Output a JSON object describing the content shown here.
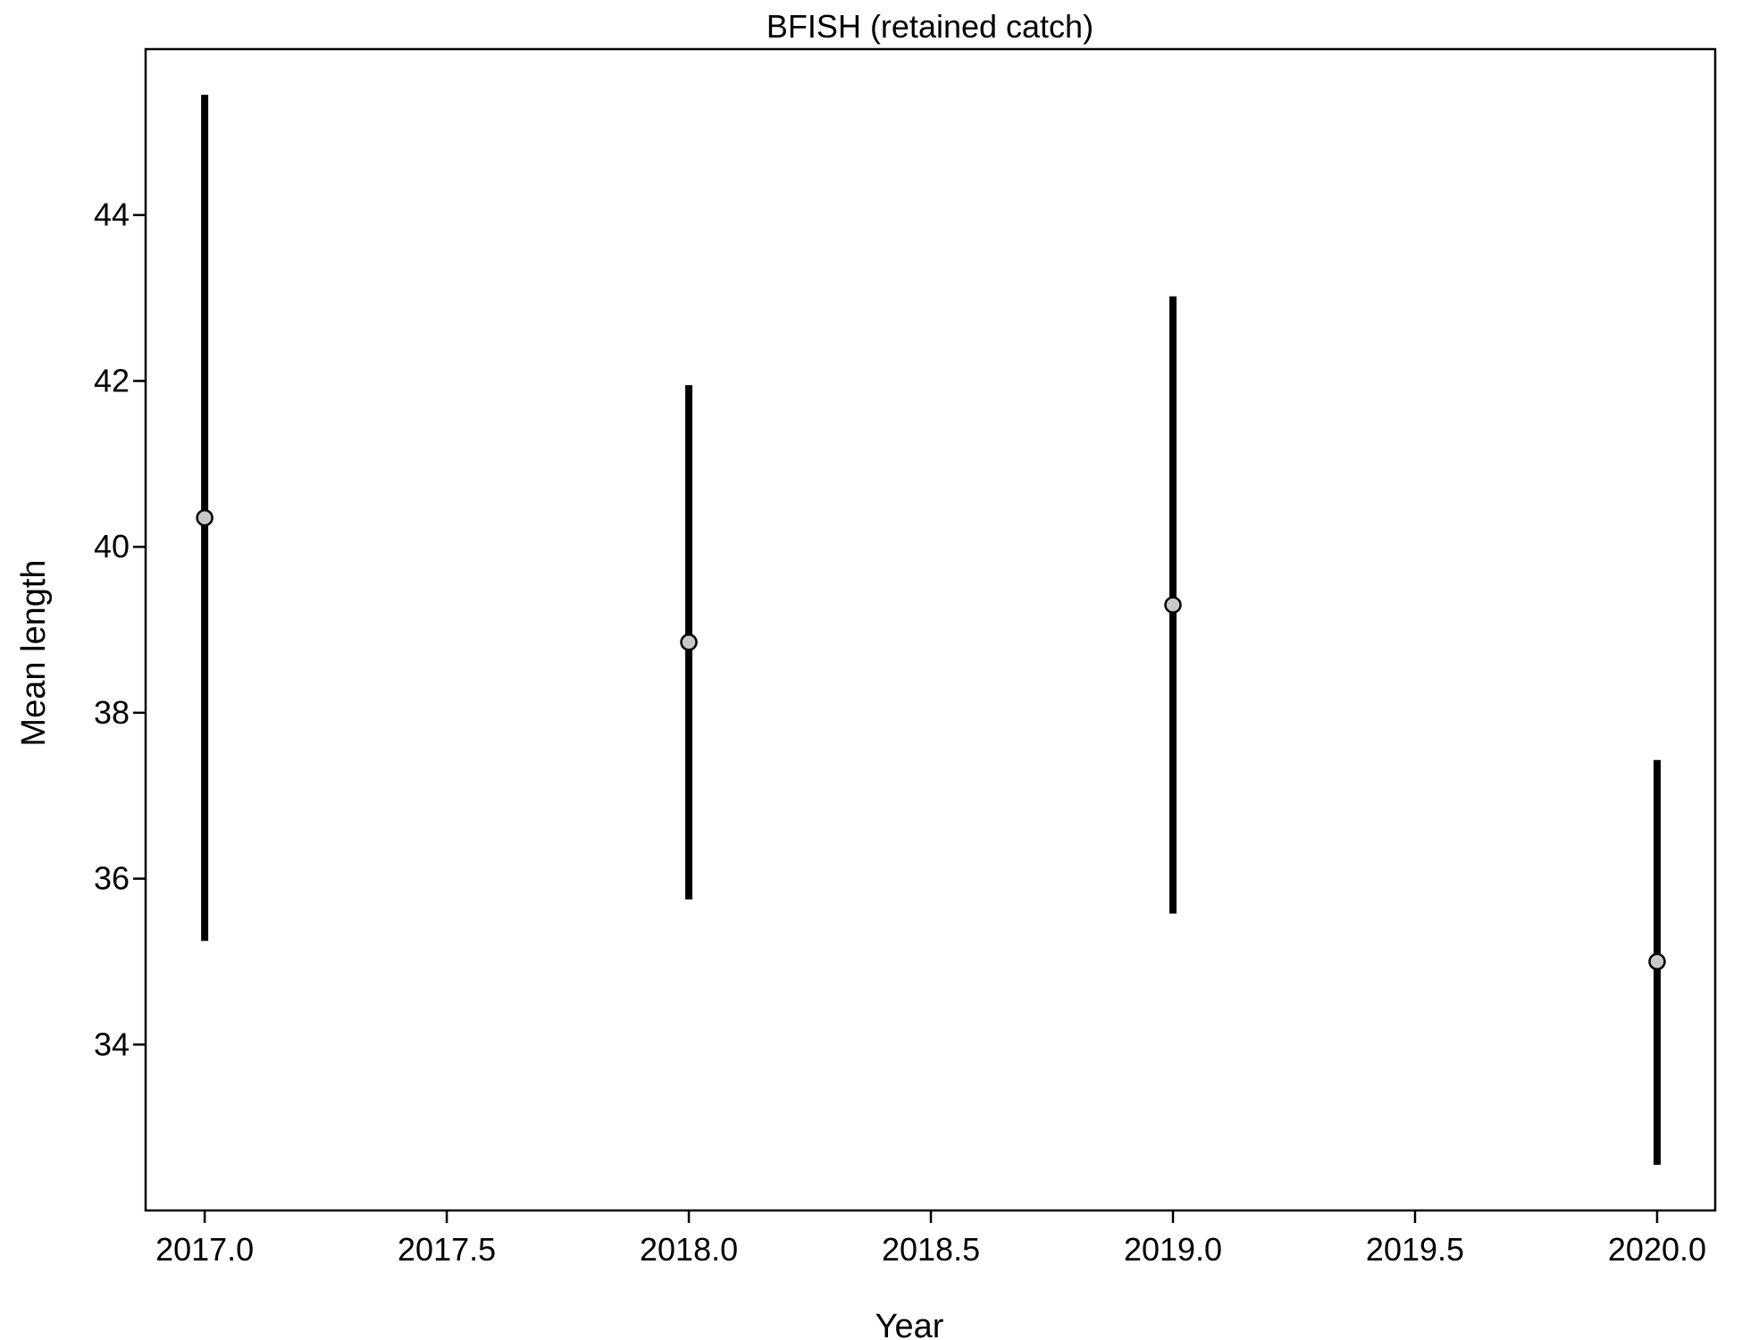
{
  "chart_data": {
    "type": "scatter",
    "title": "BFISH (retained catch)",
    "xlabel": "Year",
    "ylabel": "Mean length",
    "xlim": [
      2016.878,
      2020.12
    ],
    "ylim": [
      32.0,
      46.0
    ],
    "x_ticks": [
      2017.0,
      2017.5,
      2018.0,
      2018.5,
      2019.0,
      2019.5,
      2020.0
    ],
    "x_tick_labels": [
      "2017.0",
      "2017.5",
      "2018.0",
      "2018.5",
      "2019.0",
      "2019.5",
      "2020.0"
    ],
    "y_ticks": [
      34,
      36,
      38,
      40,
      42,
      44
    ],
    "y_tick_labels": [
      "34",
      "36",
      "38",
      "40",
      "42",
      "44"
    ],
    "grid": false,
    "points": [
      {
        "x": 2017.0,
        "y": 40.35,
        "lower": 35.25,
        "upper": 45.45
      },
      {
        "x": 2018.0,
        "y": 38.85,
        "lower": 35.75,
        "upper": 41.95
      },
      {
        "x": 2019.0,
        "y": 39.3,
        "lower": 35.58,
        "upper": 43.02
      },
      {
        "x": 2020.0,
        "y": 35.0,
        "lower": 32.55,
        "upper": 37.43
      }
    ],
    "colors": {
      "error_bar": "#000000",
      "point_fill": "#c8c8c8",
      "point_stroke": "#000000",
      "axis": "#000000"
    }
  }
}
